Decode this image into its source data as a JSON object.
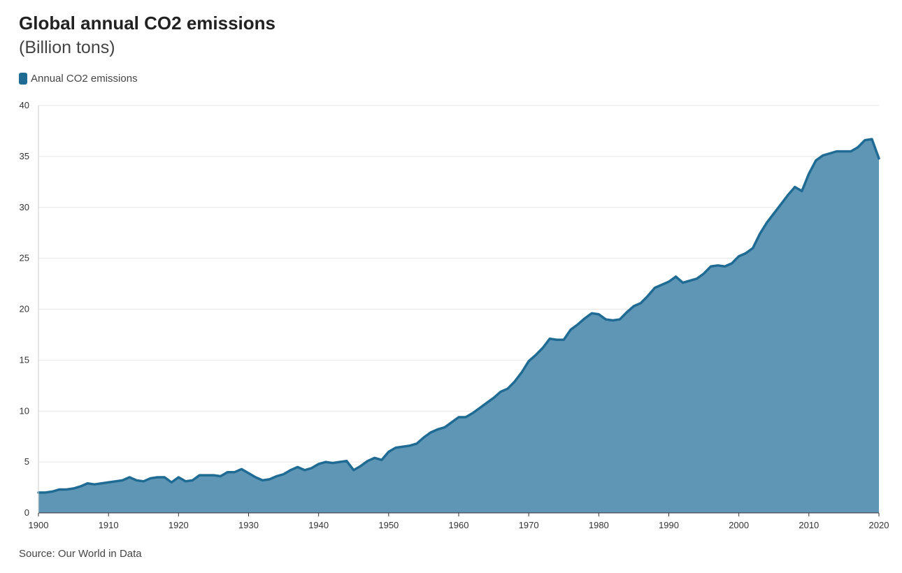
{
  "chart_data": {
    "type": "area",
    "title": "Global annual CO2 emissions",
    "subtitle": "(Billion tons)",
    "source": "Source: Our World in Data",
    "legend": [
      {
        "label": "Annual CO2 emissions",
        "color": "#1f6b94"
      }
    ],
    "legend_placement": "top-left",
    "grid": true,
    "xlim": [
      1900,
      2020
    ],
    "ylim": [
      0,
      40
    ],
    "x_ticks": [
      "1900",
      "1910",
      "1920",
      "1930",
      "1940",
      "1950",
      "1960",
      "1970",
      "1980",
      "1990",
      "2000",
      "2010",
      "2020"
    ],
    "y_ticks": [
      "0",
      "5",
      "10",
      "15",
      "20",
      "25",
      "30",
      "35",
      "40"
    ],
    "colors": {
      "line": "#1f6b94",
      "fill": "#5f96b5",
      "grid": "#e6e6e6"
    },
    "series": [
      {
        "name": "Annual CO2 emissions",
        "x": [
          1900,
          1901,
          1902,
          1903,
          1904,
          1905,
          1906,
          1907,
          1908,
          1909,
          1910,
          1911,
          1912,
          1913,
          1914,
          1915,
          1916,
          1917,
          1918,
          1919,
          1920,
          1921,
          1922,
          1923,
          1924,
          1925,
          1926,
          1927,
          1928,
          1929,
          1930,
          1931,
          1932,
          1933,
          1934,
          1935,
          1936,
          1937,
          1938,
          1939,
          1940,
          1941,
          1942,
          1943,
          1944,
          1945,
          1946,
          1947,
          1948,
          1949,
          1950,
          1951,
          1952,
          1953,
          1954,
          1955,
          1956,
          1957,
          1958,
          1959,
          1960,
          1961,
          1962,
          1963,
          1964,
          1965,
          1966,
          1967,
          1968,
          1969,
          1970,
          1971,
          1972,
          1973,
          1974,
          1975,
          1976,
          1977,
          1978,
          1979,
          1980,
          1981,
          1982,
          1983,
          1984,
          1985,
          1986,
          1987,
          1988,
          1989,
          1990,
          1991,
          1992,
          1993,
          1994,
          1995,
          1996,
          1997,
          1998,
          1999,
          2000,
          2001,
          2002,
          2003,
          2004,
          2005,
          2006,
          2007,
          2008,
          2009,
          2010,
          2011,
          2012,
          2013,
          2014,
          2015,
          2016,
          2017,
          2018,
          2019,
          2020
        ],
        "values": [
          2.0,
          2.0,
          2.1,
          2.3,
          2.3,
          2.4,
          2.6,
          2.9,
          2.8,
          2.9,
          3.0,
          3.1,
          3.2,
          3.5,
          3.2,
          3.1,
          3.4,
          3.5,
          3.5,
          3.0,
          3.5,
          3.1,
          3.2,
          3.7,
          3.7,
          3.7,
          3.6,
          4.0,
          4.0,
          4.3,
          3.9,
          3.5,
          3.2,
          3.3,
          3.6,
          3.8,
          4.2,
          4.5,
          4.2,
          4.4,
          4.8,
          5.0,
          4.9,
          5.0,
          5.1,
          4.2,
          4.6,
          5.1,
          5.4,
          5.2,
          6.0,
          6.4,
          6.5,
          6.6,
          6.8,
          7.4,
          7.9,
          8.2,
          8.4,
          8.9,
          9.4,
          9.4,
          9.8,
          10.3,
          10.8,
          11.3,
          11.9,
          12.2,
          12.9,
          13.8,
          14.9,
          15.5,
          16.2,
          17.1,
          17.0,
          17.0,
          18.0,
          18.5,
          19.1,
          19.6,
          19.5,
          19.0,
          18.9,
          19.0,
          19.7,
          20.3,
          20.6,
          21.3,
          22.1,
          22.4,
          22.7,
          23.2,
          22.6,
          22.8,
          23.0,
          23.5,
          24.2,
          24.3,
          24.2,
          24.5,
          25.2,
          25.5,
          26.0,
          27.4,
          28.5,
          29.4,
          30.3,
          31.2,
          32.0,
          31.6,
          33.3,
          34.6,
          35.1,
          35.3,
          35.5,
          35.5,
          35.5,
          35.9,
          36.6,
          36.7,
          34.8
        ]
      }
    ]
  }
}
